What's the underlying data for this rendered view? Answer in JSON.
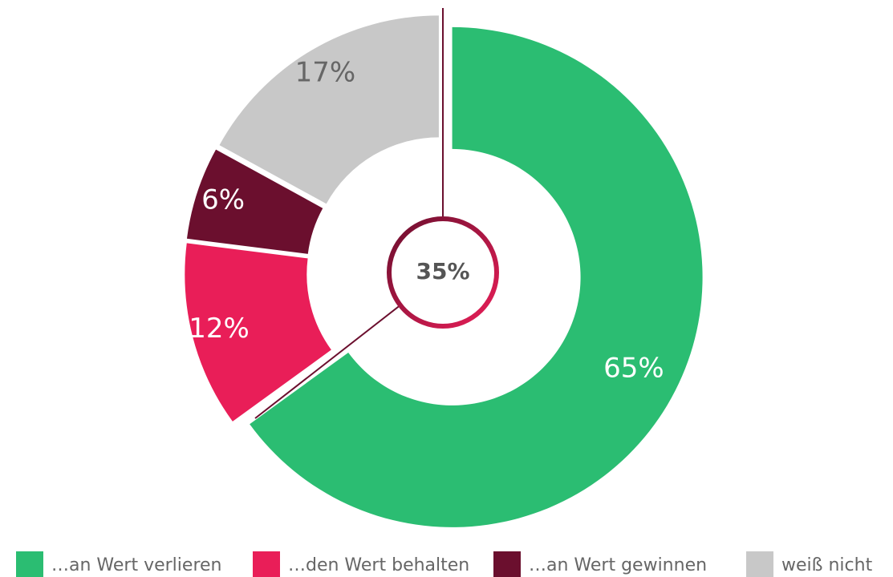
{
  "chart_data": {
    "type": "donut",
    "categories": [
      "…an Wert verlieren",
      "…den Wert behalten",
      "…an Wert gewinnen",
      "weiß nicht"
    ],
    "values": [
      65,
      12,
      6,
      17
    ],
    "value_labels": [
      "65%",
      "12%",
      "6%",
      "17%"
    ],
    "colors": [
      "#2bbd72",
      "#e91e58",
      "#6b0f2e",
      "#c8c8c8"
    ],
    "center_label": "35%"
  }
}
